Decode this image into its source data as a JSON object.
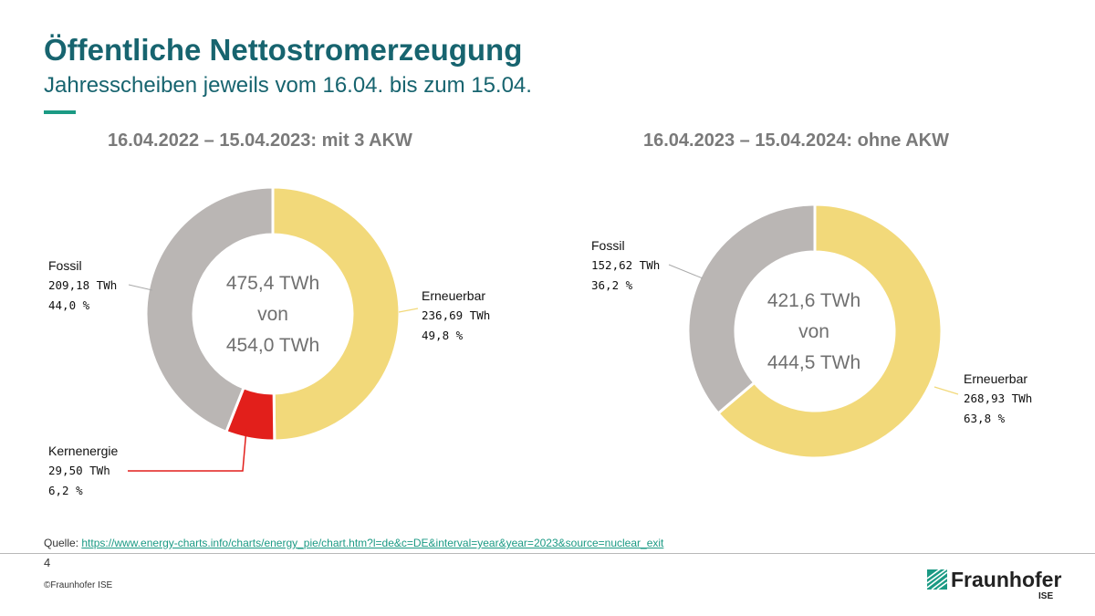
{
  "header": {
    "title": "Öffentliche Nettostromerzeugung",
    "subtitle": "Jahresscheiben jeweils vom 16.04. bis zum 15.04."
  },
  "colors": {
    "accent": "#1b9a84",
    "title": "#17646f",
    "erneuerbar": "#f2d97a",
    "fossil": "#bab6b4",
    "kernenergie": "#e21f1b"
  },
  "chart_data": [
    {
      "type": "pie",
      "title": "16.04.2022 – 15.04.2023: mit 3 AKW",
      "center_text": [
        "475,4 TWh",
        "von",
        "454,0 TWh"
      ],
      "series": [
        {
          "name": "Erneuerbar",
          "value": 236.69,
          "value_label": "236,69 TWh",
          "percent_label": "49,8 %",
          "color": "#f2d97a"
        },
        {
          "name": "Kernenergie",
          "value": 29.5,
          "value_label": "29,50 TWh",
          "percent_label": "6,2 %",
          "color": "#e21f1b"
        },
        {
          "name": "Fossil",
          "value": 209.18,
          "value_label": "209,18 TWh",
          "percent_label": "44,0 %",
          "color": "#bab6b4"
        }
      ]
    },
    {
      "type": "pie",
      "title": "16.04.2023 – 15.04.2024: ohne AKW",
      "center_text": [
        "421,6 TWh",
        "von",
        "444,5 TWh"
      ],
      "series": [
        {
          "name": "Erneuerbar",
          "value": 268.93,
          "value_label": "268,93 TWh",
          "percent_label": "63,8 %",
          "color": "#f2d97a"
        },
        {
          "name": "Fossil",
          "value": 152.62,
          "value_label": "152,62 TWh",
          "percent_label": "36,2 %",
          "color": "#bab6b4"
        }
      ]
    }
  ],
  "footer": {
    "source_prefix": "Quelle: ",
    "source_link": "https://www.energy-charts.info/charts/energy_pie/chart.htm?l=de&c=DE&interval=year&year=2023&source=nuclear_exit",
    "page_number": "4",
    "copyright": "©Fraunhofer ISE",
    "logo_name": "Fraunhofer",
    "logo_sub": "ISE"
  }
}
